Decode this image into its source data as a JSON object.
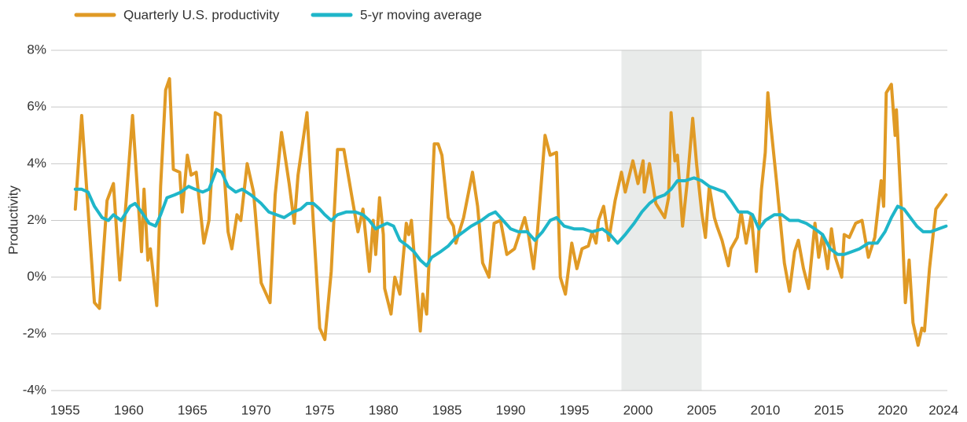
{
  "chart_data": {
    "type": "line",
    "y_label": "Productivity",
    "xlim": [
      1953.9,
      2024.3
    ],
    "xticks": [
      1955,
      1960,
      1965,
      1970,
      1975,
      1980,
      1985,
      1990,
      1995,
      2000,
      2005,
      2010,
      2015,
      2020,
      2024
    ],
    "ylim": [
      -4,
      8
    ],
    "yticks": [
      {
        "value": -4,
        "label": "-4%"
      },
      {
        "value": -2,
        "label": "-2%"
      },
      {
        "value": 0,
        "label": "0%"
      },
      {
        "value": 2,
        "label": "2%"
      },
      {
        "value": 4,
        "label": "4%"
      },
      {
        "value": 6,
        "label": "6%"
      },
      {
        "value": 8,
        "label": "8%"
      }
    ],
    "grid": true,
    "legend": "top-left",
    "highlight_xlim": [
      1998.7,
      2005.0
    ],
    "highlight_color": "#e9ebea",
    "series": [
      {
        "name": "Quarterly U.S. productivity",
        "color": "#e09a25",
        "x": [
          1955.8,
          1956.3,
          1957.3,
          1957.7,
          1958.3,
          1958.8,
          1959.3,
          1959.8,
          1960.3,
          1961.0,
          1961.2,
          1961.5,
          1961.7,
          1962.2,
          1962.5,
          1962.9,
          1963.2,
          1963.5,
          1964.0,
          1964.2,
          1964.6,
          1964.9,
          1965.3,
          1965.9,
          1966.3,
          1966.8,
          1967.2,
          1967.8,
          1968.1,
          1968.5,
          1968.8,
          1969.3,
          1969.8,
          1970.4,
          1971.1,
          1971.5,
          1972.0,
          1972.6,
          1973.0,
          1973.3,
          1974.0,
          1974.5,
          1975.0,
          1975.4,
          1975.9,
          1976.4,
          1976.9,
          1977.5,
          1978.0,
          1978.4,
          1978.9,
          1979.2,
          1979.4,
          1979.7,
          1980.0,
          1980.1,
          1980.6,
          1980.9,
          1981.3,
          1981.8,
          1982.0,
          1982.2,
          1982.9,
          1983.1,
          1983.4,
          1984.0,
          1984.3,
          1984.6,
          1985.1,
          1985.5,
          1985.7,
          1986.3,
          1987.0,
          1987.4,
          1987.8,
          1988.3,
          1988.7,
          1989.2,
          1989.7,
          1990.3,
          1991.1,
          1991.4,
          1991.8,
          1992.1,
          1992.7,
          1993.1,
          1993.6,
          1993.9,
          1994.3,
          1994.8,
          1995.2,
          1995.6,
          1996.1,
          1996.4,
          1996.7,
          1996.9,
          1997.3,
          1997.7,
          1998.2,
          1998.7,
          1999.0,
          1999.6,
          2000.0,
          2000.4,
          2000.5,
          2000.9,
          2001.4,
          2002.1,
          2002.4,
          2002.6,
          2002.9,
          2003.1,
          2003.5,
          2003.9,
          2004.3,
          2004.6,
          2005.0,
          2005.3,
          2005.6,
          2006.0,
          2006.2,
          2006.6,
          2007.1,
          2007.3,
          2007.8,
          2008.1,
          2008.5,
          2008.9,
          2009.3,
          2009.7,
          2010.0,
          2010.2,
          2010.4,
          2010.9,
          2011.5,
          2011.9,
          2012.3,
          2012.6,
          2013.0,
          2013.4,
          2013.9,
          2014.2,
          2014.5,
          2014.9,
          2015.2,
          2015.5,
          2016.0,
          2016.2,
          2016.6,
          2017.1,
          2017.6,
          2018.1,
          2018.6,
          2019.1,
          2019.3,
          2019.5,
          2019.9,
          2020.2,
          2020.3,
          2020.7,
          2021.0,
          2021.3,
          2021.6,
          2022.0,
          2022.3,
          2022.5,
          2022.9,
          2023.4,
          2024.2
        ],
        "values": [
          2.4,
          5.7,
          -0.9,
          -1.1,
          2.7,
          3.3,
          -0.1,
          2.7,
          5.7,
          0.9,
          3.1,
          0.6,
          1.0,
          -1.0,
          3.2,
          6.6,
          7.0,
          3.8,
          3.7,
          2.3,
          4.3,
          3.6,
          3.7,
          1.2,
          2.0,
          5.8,
          5.7,
          1.6,
          1.0,
          2.2,
          2.0,
          4.0,
          3.0,
          -0.2,
          -0.9,
          2.9,
          5.1,
          3.3,
          1.9,
          3.6,
          5.8,
          1.9,
          -1.8,
          -2.2,
          0.2,
          4.5,
          4.5,
          2.9,
          1.6,
          2.4,
          0.2,
          2.0,
          0.8,
          2.8,
          1.5,
          -0.4,
          -1.3,
          0.0,
          -0.6,
          1.9,
          1.5,
          2.0,
          -1.9,
          -0.6,
          -1.3,
          4.7,
          4.7,
          4.3,
          2.1,
          1.8,
          1.2,
          2.1,
          3.7,
          2.5,
          0.5,
          0.0,
          1.9,
          2.0,
          0.8,
          1.0,
          2.1,
          1.5,
          0.3,
          1.6,
          5.0,
          4.3,
          4.4,
          0.0,
          -0.6,
          1.2,
          0.3,
          1.0,
          1.1,
          1.6,
          1.2,
          2.0,
          2.5,
          1.3,
          2.7,
          3.7,
          3.0,
          4.1,
          3.3,
          4.1,
          3.0,
          4.0,
          2.6,
          2.1,
          2.8,
          5.8,
          4.1,
          4.3,
          1.8,
          3.5,
          5.6,
          4.0,
          2.3,
          1.4,
          3.2,
          2.1,
          1.8,
          1.3,
          0.4,
          1.0,
          1.4,
          2.3,
          1.2,
          2.2,
          0.2,
          3.1,
          4.4,
          6.5,
          5.5,
          3.3,
          0.5,
          -0.5,
          0.9,
          1.3,
          0.3,
          -0.4,
          1.9,
          0.7,
          1.5,
          0.3,
          1.7,
          0.7,
          0.0,
          1.5,
          1.4,
          1.9,
          2.0,
          0.7,
          1.4,
          3.4,
          2.5,
          6.5,
          6.8,
          5.0,
          5.9,
          2.3,
          -0.9,
          0.6,
          -1.6,
          -2.4,
          -1.8,
          -1.9,
          0.3,
          2.4,
          2.9
        ]
      },
      {
        "name": "5-yr moving average",
        "color": "#1fb6c9",
        "x": [
          1955.8,
          1956.3,
          1956.8,
          1957.3,
          1957.9,
          1958.4,
          1958.8,
          1959.4,
          1960.1,
          1960.5,
          1961.0,
          1961.6,
          1962.1,
          1962.5,
          1963.0,
          1963.6,
          1964.1,
          1964.7,
          1965.2,
          1965.8,
          1966.3,
          1966.9,
          1967.3,
          1967.8,
          1968.4,
          1968.9,
          1969.6,
          1970.4,
          1971.0,
          1971.6,
          1972.2,
          1972.9,
          1973.5,
          1974.0,
          1974.5,
          1975.0,
          1975.4,
          1975.9,
          1976.4,
          1977.1,
          1977.8,
          1978.4,
          1978.9,
          1979.4,
          1979.8,
          1980.3,
          1980.8,
          1981.3,
          1981.9,
          1982.4,
          1982.9,
          1983.4,
          1983.8,
          1984.5,
          1985.1,
          1985.7,
          1986.3,
          1986.9,
          1987.7,
          1988.3,
          1988.8,
          1989.4,
          1990.0,
          1990.6,
          1991.3,
          1991.9,
          1992.5,
          1993.1,
          1993.6,
          1994.2,
          1995.0,
          1995.7,
          1996.4,
          1997.2,
          1997.8,
          1998.4,
          1999.0,
          1999.7,
          2000.3,
          2000.9,
          2001.5,
          2002.1,
          2002.6,
          2003.1,
          2003.7,
          2004.4,
          2005.0,
          2005.6,
          2006.2,
          2006.8,
          2007.3,
          2007.9,
          2008.6,
          2009.0,
          2009.5,
          2010.0,
          2010.7,
          2011.3,
          2011.9,
          2012.6,
          2013.2,
          2013.9,
          2014.5,
          2015.1,
          2015.7,
          2016.2,
          2016.8,
          2017.4,
          2018.1,
          2018.8,
          2019.4,
          2019.9,
          2020.4,
          2020.9,
          2021.4,
          2021.9,
          2022.4,
          2023.0,
          2024.2
        ],
        "values": [
          3.1,
          3.1,
          3.0,
          2.5,
          2.1,
          2.0,
          2.2,
          2.0,
          2.5,
          2.6,
          2.3,
          1.9,
          1.8,
          2.2,
          2.8,
          2.9,
          3.0,
          3.2,
          3.1,
          3.0,
          3.1,
          3.8,
          3.7,
          3.2,
          3.0,
          3.1,
          2.9,
          2.6,
          2.3,
          2.2,
          2.1,
          2.3,
          2.4,
          2.6,
          2.6,
          2.4,
          2.2,
          2.0,
          2.2,
          2.3,
          2.3,
          2.2,
          2.0,
          1.7,
          1.8,
          1.9,
          1.8,
          1.3,
          1.1,
          0.9,
          0.6,
          0.4,
          0.7,
          0.9,
          1.1,
          1.4,
          1.6,
          1.8,
          2.0,
          2.2,
          2.3,
          2.0,
          1.7,
          1.6,
          1.6,
          1.3,
          1.6,
          2.0,
          2.1,
          1.8,
          1.7,
          1.7,
          1.6,
          1.7,
          1.5,
          1.2,
          1.5,
          1.9,
          2.3,
          2.6,
          2.8,
          2.9,
          3.1,
          3.4,
          3.4,
          3.5,
          3.4,
          3.2,
          3.1,
          3.0,
          2.7,
          2.3,
          2.3,
          2.2,
          1.7,
          2.0,
          2.2,
          2.2,
          2.0,
          2.0,
          1.9,
          1.7,
          1.5,
          1.0,
          0.8,
          0.8,
          0.9,
          1.0,
          1.2,
          1.2,
          1.6,
          2.1,
          2.5,
          2.4,
          2.1,
          1.8,
          1.6,
          1.6,
          1.8
        ]
      }
    ]
  }
}
